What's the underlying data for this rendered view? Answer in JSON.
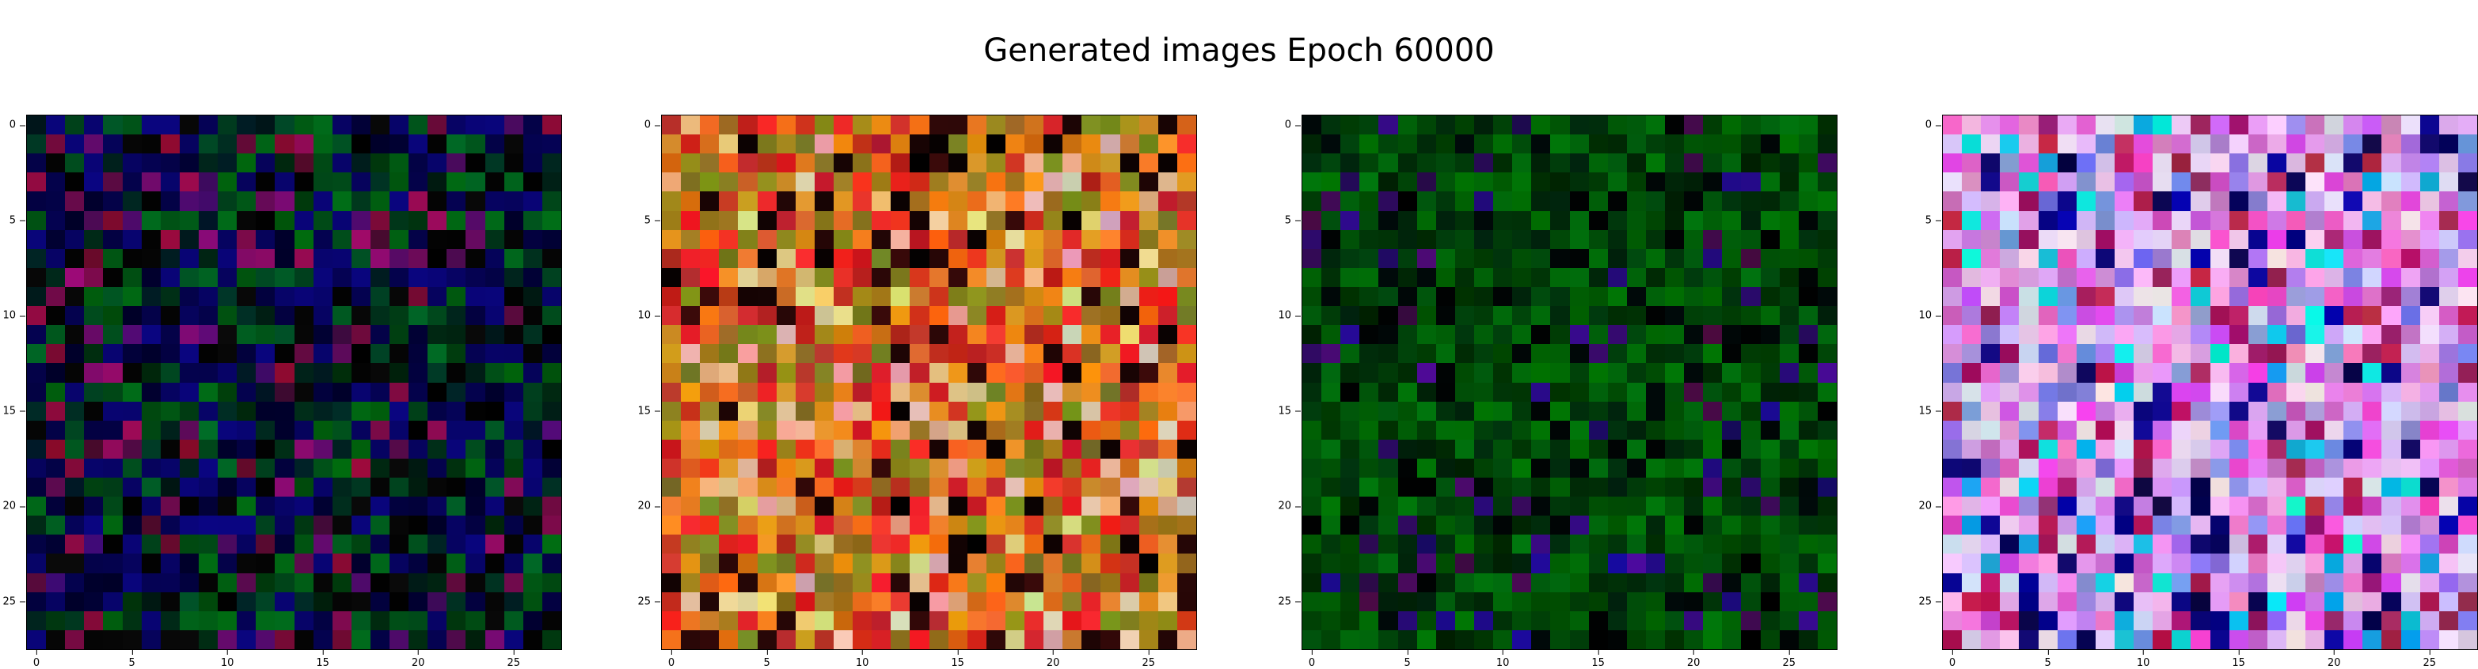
{
  "figure": {
    "title": "Generated images Epoch 60000"
  },
  "panels": [
    {
      "name": "generated-image-1",
      "palette": "blue-green-dark"
    },
    {
      "name": "generated-image-2",
      "palette": "orange-red-olive"
    },
    {
      "name": "generated-image-3",
      "palette": "green-dark"
    },
    {
      "name": "generated-image-4",
      "palette": "pastel-pink-violet"
    }
  ],
  "axes": {
    "x_ticks": [
      "0",
      "5",
      "10",
      "15",
      "20",
      "25"
    ],
    "y_ticks": [
      "0",
      "5",
      "10",
      "15",
      "20",
      "25"
    ],
    "pixel_grid": "28x28"
  }
}
